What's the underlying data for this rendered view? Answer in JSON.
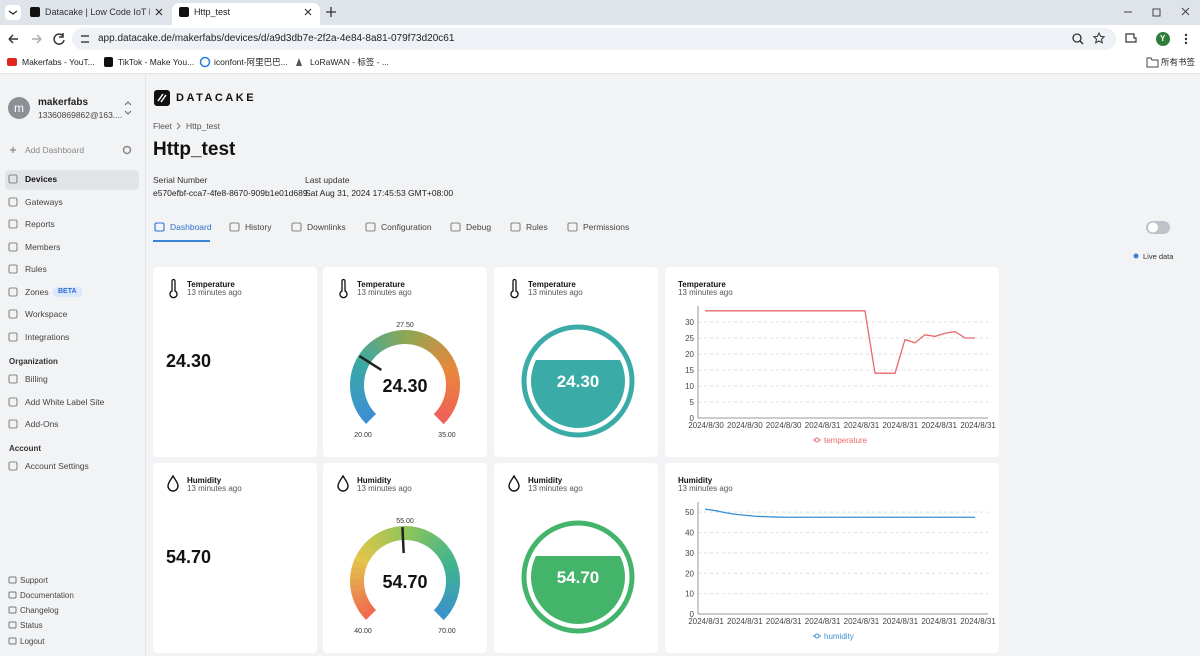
{
  "browser": {
    "tabs": [
      "Datacake | Low Code IoT Plat",
      "Http_test"
    ],
    "url": "app.datacake.de/makerfabs/devices/d/a9d3db7e-2f2a-4e84-8a81-079f73d20c61",
    "bookmarks": [
      "Makerfabs - YouT...",
      "TikTok - Make You...",
      "iconfont-阿里巴巴...",
      "LoRaWAN - 标签 - ..."
    ],
    "all_bookmarks": "所有书签",
    "profile": "Y"
  },
  "sidebar": {
    "avatar": "m",
    "user": "makerfabs",
    "email": "13360869862@163....",
    "add_dashboard": "Add Dashboard",
    "nav": [
      "Devices",
      "Gateways",
      "Reports",
      "Members",
      "Rules",
      "Zones",
      "Workspace",
      "Integrations"
    ],
    "badge": "BETA",
    "organization": {
      "heading": "Organization",
      "items": [
        "Billing",
        "Add White Label Site",
        "Add-Ons"
      ]
    },
    "account": {
      "heading": "Account",
      "items": [
        "Account Settings"
      ]
    },
    "footer": [
      "Support",
      "Documentation",
      "Changelog",
      "Status",
      "Logout"
    ]
  },
  "header": {
    "logo": "DATACAKE",
    "breadcrumb": [
      "Fleet",
      "Http_test"
    ],
    "title": "Http_test",
    "serial_label": "Serial Number",
    "serial": "e570efbf-cca7-4fe8-8670-909b1e01d689",
    "update_label": "Last update",
    "update": "Sat Aug 31, 2024 17:45:53 GMT+08:00",
    "tabs": [
      "Dashboard",
      "History",
      "Downlinks",
      "Configuration",
      "Debug",
      "Rules",
      "Permissions"
    ],
    "live": "Live data"
  },
  "widgets": [
    {
      "type": "value",
      "icon": "thermo",
      "title": "Temperature",
      "time": "13 minutes ago",
      "value": "24.30"
    },
    {
      "type": "gauge",
      "icon": "thermo",
      "title": "Temperature",
      "time": "13 minutes ago",
      "value": 24.3,
      "value_label": "24.30",
      "min": 20,
      "min_label": "20.00",
      "mid": 27.5,
      "mid_label": "27.50",
      "max": 35,
      "max_label": "35.00",
      "colors": [
        "#3b8fd3",
        "#3aa9a4",
        "#8fa653",
        "#e8873a",
        "#f15d5b"
      ]
    },
    {
      "type": "tank",
      "icon": "thermo",
      "title": "Temperature",
      "time": "13 minutes ago",
      "value": "24.30",
      "color": "#3aaba6"
    },
    {
      "type": "line",
      "icon": "thermo",
      "title": "Temperature",
      "time": "13 minutes ago",
      "xtick_labels": [
        "2024/8/30",
        "2024/8/30",
        "2024/8/30",
        "2024/8/31",
        "2024/8/31",
        "2024/8/31",
        "2024/8/31",
        "2024/8/31"
      ],
      "ylim": [
        0,
        35
      ],
      "yticks": [
        0,
        5,
        10,
        15,
        20,
        25,
        30
      ],
      "series": [
        {
          "name": "temperature",
          "color": "#e8696b",
          "values": [
            33.5,
            33.5,
            33.5,
            33.5,
            33.5,
            33.5,
            33.5,
            33.5,
            33.5,
            33.5,
            33.5,
            33.5,
            33.5,
            33.5,
            33.5,
            33.5,
            33.5,
            14,
            14,
            14,
            24.5,
            23.5,
            26,
            25.5,
            26.5,
            27,
            25,
            25
          ]
        }
      ]
    },
    {
      "type": "value",
      "icon": "drop",
      "title": "Humidity",
      "time": "13 minutes ago",
      "value": "54.70"
    },
    {
      "type": "gauge",
      "icon": "drop",
      "title": "Humidity",
      "time": "13 minutes ago",
      "value": 54.7,
      "value_label": "54.70",
      "min": 40,
      "min_label": "40.00",
      "mid": 55,
      "mid_label": "55.00",
      "max": 70,
      "max_label": "70.00",
      "colors": [
        "#ef6a4f",
        "#e3c54a",
        "#8cc55a",
        "#3fb28f",
        "#3b8fd3"
      ]
    },
    {
      "type": "tank",
      "icon": "drop",
      "title": "Humidity",
      "time": "13 minutes ago",
      "value": "54.70",
      "color": "#45b46b"
    },
    {
      "type": "line",
      "icon": "drop",
      "title": "Humidity",
      "time": "13 minutes ago",
      "xtick_labels": [
        "2024/8/31",
        "2024/8/31",
        "2024/8/31",
        "2024/8/31",
        "2024/8/31",
        "2024/8/31",
        "2024/8/31",
        "2024/8/31"
      ],
      "ylim": [
        0,
        55
      ],
      "yticks": [
        0,
        10,
        20,
        30,
        40,
        50
      ],
      "series": [
        {
          "name": "humidity",
          "color": "#3b8fd3",
          "values": [
            51.5,
            50.8,
            49.8,
            49,
            48.5,
            48,
            47.8,
            47.6,
            47.5,
            47.5,
            47.5,
            47.5,
            47.5,
            47.5,
            47.5,
            47.5,
            47.5,
            47.5,
            47.5,
            47.5,
            47.5,
            47.5,
            47.5,
            47.5,
            47.5,
            47.5,
            47.5,
            47.5
          ]
        }
      ]
    }
  ]
}
